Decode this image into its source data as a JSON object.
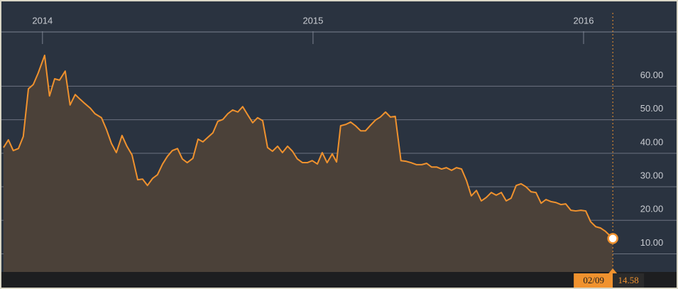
{
  "chart_data": {
    "type": "line",
    "x": [
      2013.856,
      2013.874,
      2013.892,
      2013.911,
      2013.929,
      2013.948,
      2013.966,
      2013.984,
      2014.008,
      2014.026,
      2014.045,
      2014.063,
      2014.084,
      2014.102,
      2014.121,
      2014.139,
      2014.157,
      2014.176,
      2014.194,
      2014.218,
      2014.236,
      2014.255,
      2014.273,
      2014.294,
      2014.312,
      2014.331,
      2014.352,
      2014.37,
      2014.388,
      2014.407,
      2014.425,
      2014.444,
      2014.462,
      2014.48,
      2014.499,
      2014.517,
      2014.535,
      2014.556,
      2014.575,
      2014.593,
      2014.612,
      2014.63,
      2014.648,
      2014.667,
      2014.685,
      2014.703,
      2014.722,
      2014.74,
      2014.759,
      2014.777,
      2014.795,
      2014.814,
      2014.832,
      2014.85,
      2014.869,
      2014.887,
      2014.906,
      2014.924,
      2014.942,
      2014.961,
      2014.979,
      2014.997,
      2015.016,
      2015.034,
      2015.052,
      2015.071,
      2015.087,
      2015.102,
      2015.121,
      2015.139,
      2015.157,
      2015.176,
      2015.194,
      2015.213,
      2015.231,
      2015.249,
      2015.268,
      2015.286,
      2015.304,
      2015.325,
      2015.344,
      2015.362,
      2015.383,
      2015.402,
      2015.42,
      2015.438,
      2015.457,
      2015.475,
      2015.493,
      2015.512,
      2015.53,
      2015.549,
      2015.567,
      2015.585,
      2015.604,
      2015.622,
      2015.64,
      2015.659,
      2015.677,
      2015.696,
      2015.714,
      2015.732,
      2015.751,
      2015.769,
      2015.787,
      2015.806,
      2015.824,
      2015.843,
      2015.861,
      2015.879,
      2015.898,
      2015.916,
      2015.934,
      2015.953,
      2015.971,
      2015.99,
      2016.008,
      2016.026,
      2016.045,
      2016.063,
      2016.081,
      2016.108
    ],
    "series": [
      {
        "color": "#f0922e",
        "fill": "#4b4139",
        "values": [
          41.7,
          44.0,
          40.8,
          41.4,
          45.0,
          59.2,
          60.5,
          63.9,
          69.2,
          57.1,
          62.2,
          61.8,
          64.5,
          54.4,
          57.5,
          56.1,
          54.8,
          53.5,
          51.8,
          50.6,
          47.2,
          42.9,
          40.2,
          45.3,
          42.1,
          39.5,
          32.1,
          32.3,
          30.4,
          32.5,
          33.6,
          36.8,
          39.1,
          40.8,
          41.4,
          38.3,
          37.2,
          38.5,
          44.2,
          43.4,
          44.8,
          46.1,
          49.5,
          50.1,
          51.8,
          52.9,
          52.3,
          53.9,
          51.4,
          49.1,
          50.6,
          49.7,
          41.7,
          40.6,
          42.1,
          40.2,
          42.1,
          40.6,
          38.3,
          37.2,
          37.2,
          37.8,
          36.8,
          40.2,
          37.2,
          39.8,
          37.4,
          48.2,
          48.6,
          49.3,
          48.2,
          46.7,
          46.7,
          48.4,
          49.9,
          50.8,
          52.3,
          50.8,
          51.0,
          37.8,
          37.6,
          37.2,
          36.6,
          36.6,
          37.0,
          35.9,
          35.9,
          35.3,
          35.7,
          34.9,
          35.7,
          35.3,
          31.9,
          27.3,
          28.9,
          25.8,
          26.8,
          28.3,
          27.5,
          28.3,
          25.8,
          26.6,
          30.4,
          30.9,
          30.0,
          28.5,
          28.3,
          25.1,
          26.2,
          25.6,
          25.3,
          24.7,
          24.9,
          23.0,
          22.8,
          23.0,
          22.8,
          19.6,
          18.1,
          17.7,
          16.7,
          14.58
        ]
      }
    ],
    "xlim": [
      2013.843,
      2016.349
    ],
    "xticks": [
      2014,
      2015,
      2016
    ],
    "ylim": [
      4.6,
      73
    ],
    "yticks": [
      {
        "value": 10,
        "label": "10.00"
      },
      {
        "value": 20,
        "label": "20.00"
      },
      {
        "value": 30,
        "label": "30.00"
      },
      {
        "value": 40,
        "label": "40.00"
      },
      {
        "value": 50,
        "label": "50.00"
      },
      {
        "value": 60,
        "label": "60.00"
      }
    ],
    "grid": true,
    "crosshair": {
      "label": "02/09",
      "value_label": "14.58"
    }
  }
}
